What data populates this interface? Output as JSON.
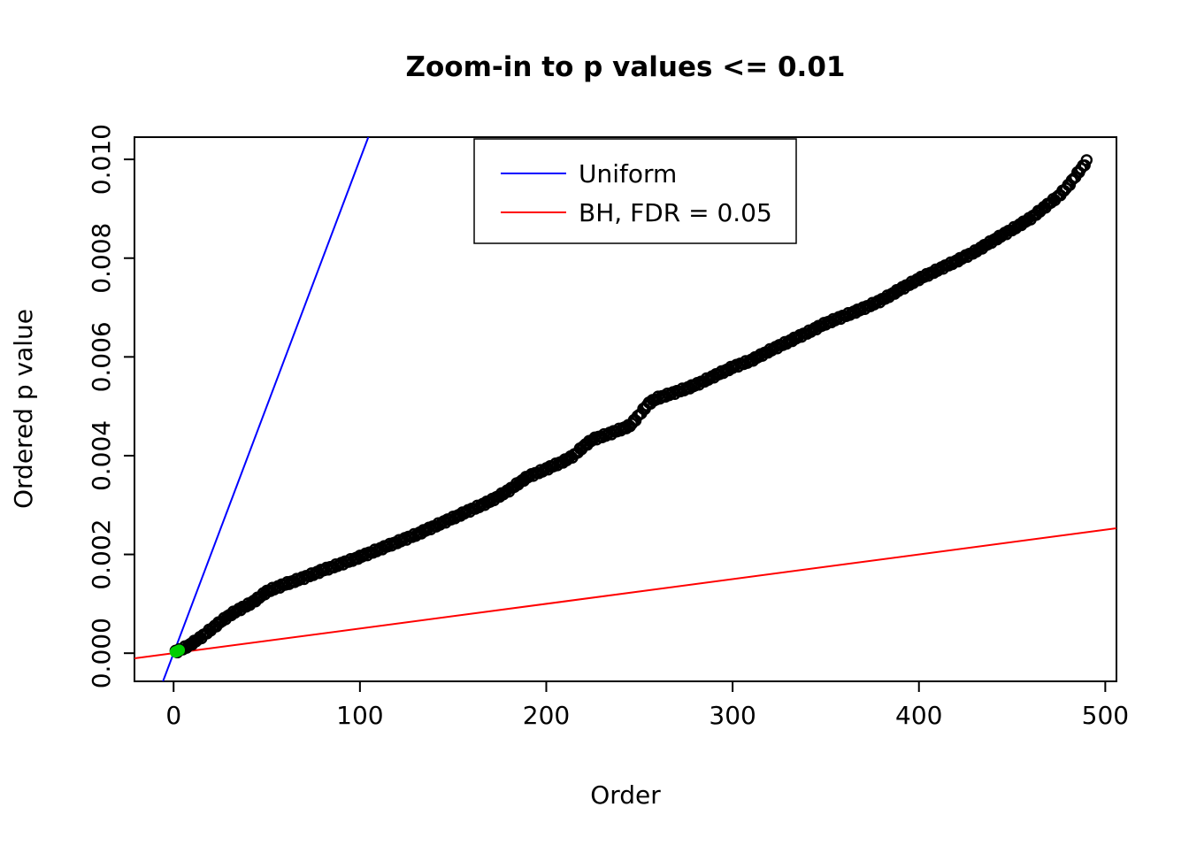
{
  "figure": {
    "background": "#ffffff"
  },
  "chart_data": {
    "type": "scatter",
    "title": "Zoom-in to p values <= 0.01",
    "xlabel": "Order",
    "ylabel": "Ordered p value",
    "xlim": [
      -21,
      506
    ],
    "ylim": [
      -0.00057,
      0.01045
    ],
    "grid": false,
    "box": true,
    "x_ticks": {
      "values": [
        0,
        100,
        200,
        300,
        400,
        500
      ],
      "labels": [
        "0",
        "100",
        "200",
        "300",
        "400",
        "500"
      ]
    },
    "y_ticks": {
      "values": [
        0.0,
        0.002,
        0.004,
        0.006,
        0.008,
        0.01
      ],
      "labels": [
        "0.000",
        "0.002",
        "0.004",
        "0.006",
        "0.008",
        "0.010"
      ]
    },
    "lines": [
      {
        "name": "Uniform",
        "color": "#0000FF",
        "slope": 0.0001,
        "intercept": 0,
        "width": 2
      },
      {
        "name": "BH, FDR = 0.05",
        "color": "#FF0000",
        "slope": 5e-06,
        "intercept": 0,
        "width": 2
      }
    ],
    "points": {
      "name": "ordered-p-values",
      "color": "#000000",
      "marker": "open-circle",
      "n": 490,
      "anchors": [
        [
          1,
          3e-05
        ],
        [
          5,
          9e-05
        ],
        [
          10,
          0.0002
        ],
        [
          15,
          0.00033
        ],
        [
          20,
          0.00048
        ],
        [
          25,
          0.00063
        ],
        [
          30,
          0.00077
        ],
        [
          35,
          0.00088
        ],
        [
          40,
          0.00098
        ],
        [
          45,
          0.0011
        ],
        [
          50,
          0.00125
        ],
        [
          60,
          0.0014
        ],
        [
          70,
          0.00153
        ],
        [
          80,
          0.00168
        ],
        [
          90,
          0.00181
        ],
        [
          100,
          0.00195
        ],
        [
          110,
          0.0021
        ],
        [
          120,
          0.00225
        ],
        [
          130,
          0.0024
        ],
        [
          140,
          0.00257
        ],
        [
          150,
          0.00274
        ],
        [
          160,
          0.00291
        ],
        [
          170,
          0.00308
        ],
        [
          180,
          0.0033
        ],
        [
          185,
          0.00344
        ],
        [
          190,
          0.00357
        ],
        [
          200,
          0.00373
        ],
        [
          210,
          0.0039
        ],
        [
          215,
          0.00401
        ],
        [
          220,
          0.00419
        ],
        [
          225,
          0.00433
        ],
        [
          235,
          0.00446
        ],
        [
          245,
          0.00461
        ],
        [
          250,
          0.00483
        ],
        [
          255,
          0.00506
        ],
        [
          260,
          0.00517
        ],
        [
          270,
          0.00529
        ],
        [
          280,
          0.00543
        ],
        [
          290,
          0.00561
        ],
        [
          300,
          0.00579
        ],
        [
          310,
          0.00593
        ],
        [
          320,
          0.00613
        ],
        [
          330,
          0.00631
        ],
        [
          340,
          0.00649
        ],
        [
          350,
          0.00668
        ],
        [
          360,
          0.00683
        ],
        [
          370,
          0.00698
        ],
        [
          380,
          0.00715
        ],
        [
          390,
          0.00737
        ],
        [
          400,
          0.00758
        ],
        [
          410,
          0.00776
        ],
        [
          420,
          0.00794
        ],
        [
          430,
          0.00813
        ],
        [
          440,
          0.00836
        ],
        [
          450,
          0.00858
        ],
        [
          460,
          0.00881
        ],
        [
          470,
          0.00911
        ],
        [
          475,
          0.00926
        ],
        [
          480,
          0.00946
        ],
        [
          485,
          0.00971
        ],
        [
          490,
          0.00996
        ]
      ]
    },
    "highlight_points": {
      "name": "BH-significant",
      "color": "#00CD00",
      "points": [
        [
          1,
          2.5e-05
        ],
        [
          2,
          4e-05
        ],
        [
          3,
          6e-05
        ]
      ]
    },
    "legend": {
      "position": "top-center",
      "entries": [
        {
          "label": "Uniform",
          "color": "#0000FF"
        },
        {
          "label": "BH, FDR = 0.05",
          "color": "#FF0000"
        }
      ]
    }
  }
}
